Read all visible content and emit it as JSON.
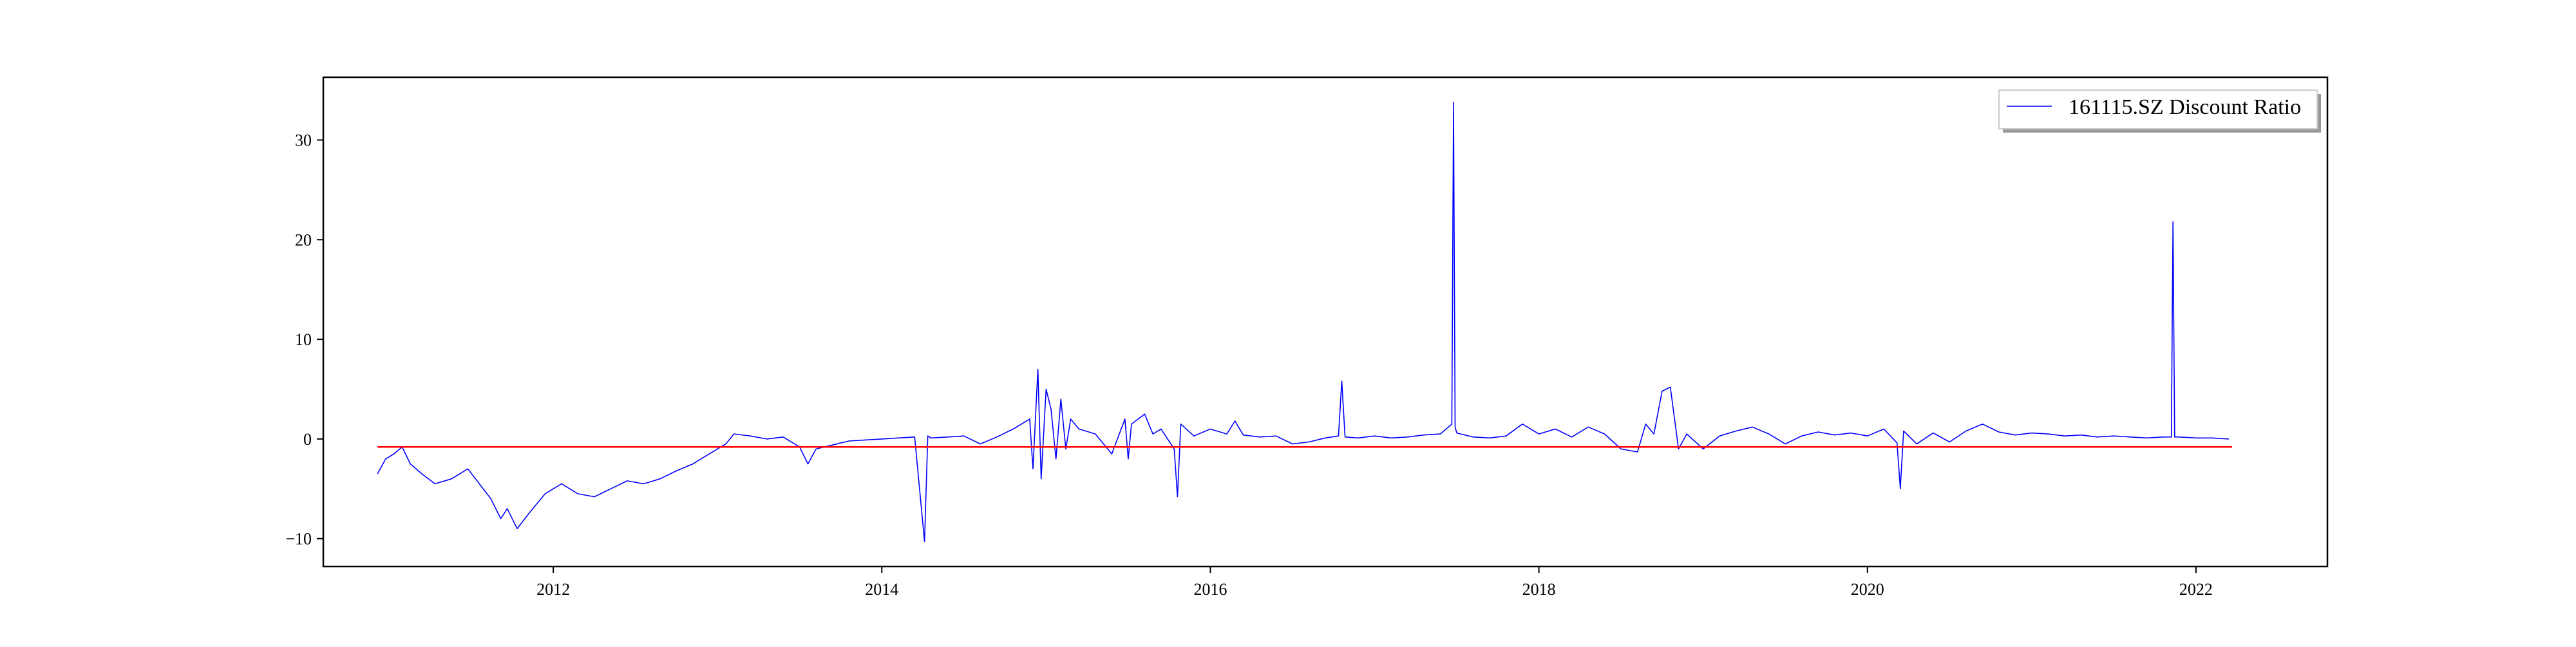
{
  "chart_data": {
    "type": "line",
    "title": "",
    "xlabel": "",
    "ylabel": "",
    "xlim": [
      2010.6,
      2022.8
    ],
    "ylim": [
      -12.8,
      36.3
    ],
    "x_ticks": [
      2012,
      2014,
      2016,
      2018,
      2020,
      2022
    ],
    "x_tick_labels": [
      "2012",
      "2014",
      "2016",
      "2018",
      "2020",
      "2022"
    ],
    "y_ticks": [
      -10,
      0,
      10,
      20,
      30
    ],
    "y_tick_labels": [
      "−10",
      "0",
      "10",
      "20",
      "30"
    ],
    "grid": false,
    "legend": {
      "placement": "top-right",
      "entries": [
        "161115.SZ Discount Ratio"
      ]
    },
    "colors": {
      "series": "#0000ff",
      "reference": "#ff0000",
      "axes": "#000000"
    },
    "series": [
      {
        "name": "161115.SZ Discount Ratio",
        "color": "#0000ff",
        "x": [
          2010.93,
          2010.98,
          2011.03,
          2011.08,
          2011.13,
          2011.2,
          2011.28,
          2011.38,
          2011.48,
          2011.55,
          2011.62,
          2011.68,
          2011.72,
          2011.78,
          2011.85,
          2011.95,
          2012.05,
          2012.15,
          2012.25,
          2012.35,
          2012.45,
          2012.55,
          2012.65,
          2012.75,
          2012.85,
          2012.95,
          2013.05,
          2013.1,
          2013.2,
          2013.3,
          2013.4,
          2013.5,
          2013.55,
          2013.6,
          2013.7,
          2013.8,
          2013.9,
          2014.0,
          2014.1,
          2014.2,
          2014.26,
          2014.28,
          2014.3,
          2014.4,
          2014.5,
          2014.6,
          2014.7,
          2014.8,
          2014.9,
          2014.92,
          2014.95,
          2014.97,
          2015.0,
          2015.03,
          2015.06,
          2015.09,
          2015.12,
          2015.15,
          2015.2,
          2015.3,
          2015.4,
          2015.48,
          2015.5,
          2015.52,
          2015.6,
          2015.65,
          2015.7,
          2015.78,
          2015.8,
          2015.82,
          2015.9,
          2016.0,
          2016.1,
          2016.15,
          2016.2,
          2016.3,
          2016.4,
          2016.5,
          2016.6,
          2016.7,
          2016.78,
          2016.8,
          2016.82,
          2016.9,
          2017.0,
          2017.1,
          2017.2,
          2017.3,
          2017.4,
          2017.47,
          2017.48,
          2017.49,
          2017.5,
          2017.6,
          2017.7,
          2017.8,
          2017.9,
          2018.0,
          2018.1,
          2018.2,
          2018.3,
          2018.4,
          2018.5,
          2018.6,
          2018.65,
          2018.7,
          2018.75,
          2018.8,
          2018.85,
          2018.9,
          2019.0,
          2019.1,
          2019.2,
          2019.3,
          2019.4,
          2019.5,
          2019.6,
          2019.7,
          2019.8,
          2019.9,
          2020.0,
          2020.1,
          2020.18,
          2020.2,
          2020.22,
          2020.3,
          2020.4,
          2020.5,
          2020.6,
          2020.7,
          2020.8,
          2020.9,
          2021.0,
          2021.1,
          2021.2,
          2021.3,
          2021.4,
          2021.5,
          2021.6,
          2021.7,
          2021.8,
          2021.85,
          2021.86,
          2021.87,
          2021.9,
          2022.0,
          2022.1,
          2022.2
        ],
        "values": [
          -3.5,
          -2.0,
          -1.5,
          -0.8,
          -2.5,
          -3.5,
          -4.5,
          -4.0,
          -3.0,
          -4.5,
          -6.0,
          -8.0,
          -7.0,
          -9.0,
          -7.5,
          -5.5,
          -4.5,
          -5.5,
          -5.8,
          -5.0,
          -4.2,
          -4.5,
          -4.0,
          -3.2,
          -2.5,
          -1.5,
          -0.5,
          0.5,
          0.3,
          0.0,
          0.2,
          -0.8,
          -2.5,
          -1.0,
          -0.6,
          -0.2,
          -0.1,
          0.0,
          0.1,
          0.2,
          -10.3,
          0.3,
          0.1,
          0.2,
          0.3,
          -0.5,
          0.2,
          1.0,
          2.0,
          -3.0,
          7.0,
          -4.0,
          5.0,
          3.0,
          -2.0,
          4.0,
          -1.0,
          2.0,
          1.0,
          0.5,
          -1.5,
          2.0,
          -2.0,
          1.5,
          2.5,
          0.5,
          1.0,
          -1.0,
          -5.8,
          1.5,
          0.3,
          1.0,
          0.5,
          1.8,
          0.4,
          0.2,
          0.3,
          -0.5,
          -0.3,
          0.1,
          0.3,
          5.8,
          0.2,
          0.1,
          0.3,
          0.1,
          0.2,
          0.4,
          0.5,
          1.5,
          33.8,
          1.2,
          0.6,
          0.2,
          0.1,
          0.3,
          1.5,
          0.5,
          1.0,
          0.2,
          1.2,
          0.5,
          -1.0,
          -1.3,
          1.5,
          0.5,
          4.8,
          5.2,
          -1.0,
          0.5,
          -1.0,
          0.3,
          0.8,
          1.2,
          0.5,
          -0.5,
          0.3,
          0.7,
          0.4,
          0.6,
          0.3,
          1.0,
          -0.4,
          -5.0,
          0.8,
          -0.5,
          0.6,
          -0.3,
          0.8,
          1.5,
          0.7,
          0.4,
          0.6,
          0.5,
          0.3,
          0.4,
          0.2,
          0.3,
          0.2,
          0.1,
          0.2,
          0.2,
          21.8,
          0.2,
          0.2,
          0.1,
          0.1,
          0.0
        ]
      }
    ],
    "reference_line": {
      "y": -0.8,
      "x_range": [
        2010.93,
        2022.22
      ],
      "color": "#ff0000"
    }
  }
}
